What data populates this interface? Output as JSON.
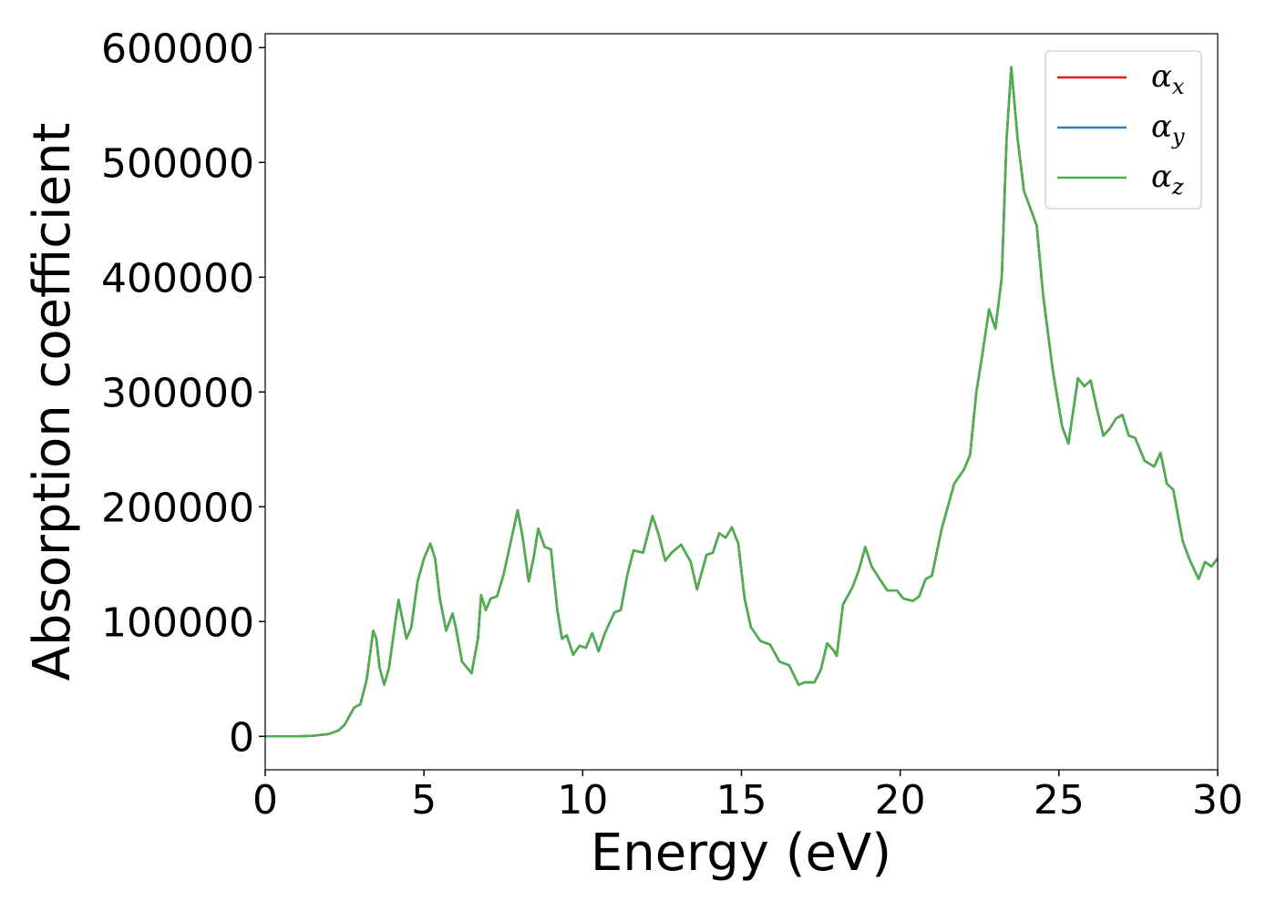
{
  "chart_data": {
    "type": "line",
    "xlabel": "Energy (eV)",
    "ylabel": "Absorption coefficient",
    "x": [
      0,
      1,
      1.5,
      2,
      2.3,
      2.5,
      2.8,
      3.0,
      3.2,
      3.4,
      3.5,
      3.6,
      3.75,
      3.9,
      4.1,
      4.2,
      4.3,
      4.45,
      4.6,
      4.8,
      5.0,
      5.2,
      5.35,
      5.5,
      5.7,
      5.9,
      6.0,
      6.2,
      6.5,
      6.7,
      6.8,
      6.95,
      7.1,
      7.3,
      7.5,
      7.7,
      7.95,
      8.1,
      8.3,
      8.45,
      8.6,
      8.8,
      9.0,
      9.2,
      9.35,
      9.5,
      9.7,
      9.9,
      10.1,
      10.3,
      10.5,
      10.7,
      11.0,
      11.2,
      11.4,
      11.6,
      11.9,
      12.2,
      12.4,
      12.6,
      12.8,
      13.1,
      13.4,
      13.6,
      13.9,
      14.1,
      14.3,
      14.5,
      14.7,
      14.9,
      15.1,
      15.3,
      15.6,
      15.9,
      16.2,
      16.5,
      16.8,
      17.0,
      17.3,
      17.5,
      17.7,
      17.9,
      18.0,
      18.2,
      18.5,
      18.7,
      18.9,
      19.1,
      19.4,
      19.6,
      19.9,
      20.1,
      20.4,
      20.6,
      20.8,
      21.0,
      21.3,
      21.7,
      22.0,
      22.2,
      22.4,
      22.6,
      22.8,
      23.0,
      23.2,
      23.35,
      23.5,
      23.7,
      23.9,
      24.1,
      24.3,
      24.5,
      24.8,
      25.1,
      25.3,
      25.6,
      25.8,
      26.0,
      26.2,
      26.4,
      26.6,
      26.8,
      27.0,
      27.2,
      27.4,
      27.7,
      28.0,
      28.2,
      28.4,
      28.6,
      28.9,
      29.1,
      29.4,
      29.6,
      29.8,
      30
    ],
    "series": [
      {
        "name": "αx",
        "color": "#e41a1c",
        "values": [
          0,
          0,
          500,
          2000,
          5000,
          10000,
          25000,
          28000,
          50000,
          92000,
          85000,
          60000,
          45000,
          60000,
          100000,
          119000,
          105000,
          85000,
          95000,
          135000,
          155000,
          168000,
          155000,
          120000,
          92000,
          107000,
          95000,
          65000,
          55000,
          85000,
          123000,
          110000,
          120000,
          122000,
          140000,
          165000,
          197000,
          175000,
          135000,
          155000,
          181000,
          165000,
          163000,
          110000,
          85000,
          88000,
          71000,
          79000,
          77000,
          90000,
          74000,
          90000,
          108000,
          110000,
          140000,
          162000,
          160000,
          192000,
          175000,
          153000,
          160000,
          167000,
          152000,
          128000,
          158000,
          160000,
          177000,
          173000,
          182000,
          168000,
          120000,
          95000,
          83000,
          80000,
          65000,
          62000,
          45000,
          47000,
          47000,
          58000,
          81000,
          75000,
          70000,
          115000,
          130000,
          145000,
          165000,
          148000,
          135000,
          127000,
          127000,
          120000,
          118000,
          122000,
          137000,
          140000,
          180000,
          220000,
          232000,
          245000,
          300000,
          335000,
          372000,
          355000,
          400000,
          520000,
          583000,
          520000,
          475000,
          460000,
          445000,
          385000,
          320000,
          270000,
          255000,
          312000,
          305000,
          310000,
          285000,
          262000,
          268000,
          277000,
          280000,
          262000,
          260000,
          240000,
          235000,
          247000,
          220000,
          215000,
          170000,
          155000,
          137000,
          152000,
          148000,
          155000
        ]
      },
      {
        "name": "αy",
        "color": "#377eb8",
        "values": [
          0,
          0,
          500,
          2000,
          5000,
          10000,
          25000,
          28000,
          50000,
          92000,
          85000,
          60000,
          45000,
          60000,
          100000,
          119000,
          105000,
          85000,
          95000,
          135000,
          155000,
          168000,
          155000,
          120000,
          92000,
          107000,
          95000,
          65000,
          55000,
          85000,
          123000,
          110000,
          120000,
          122000,
          140000,
          165000,
          197000,
          175000,
          135000,
          155000,
          181000,
          165000,
          163000,
          110000,
          85000,
          88000,
          71000,
          79000,
          77000,
          90000,
          74000,
          90000,
          108000,
          110000,
          140000,
          162000,
          160000,
          192000,
          175000,
          153000,
          160000,
          167000,
          152000,
          128000,
          158000,
          160000,
          177000,
          173000,
          182000,
          168000,
          120000,
          95000,
          83000,
          80000,
          65000,
          62000,
          45000,
          47000,
          47000,
          58000,
          81000,
          75000,
          70000,
          115000,
          130000,
          145000,
          165000,
          148000,
          135000,
          127000,
          127000,
          120000,
          118000,
          122000,
          137000,
          140000,
          180000,
          220000,
          232000,
          245000,
          300000,
          335000,
          372000,
          355000,
          400000,
          520000,
          583000,
          520000,
          475000,
          460000,
          445000,
          385000,
          320000,
          270000,
          255000,
          312000,
          305000,
          310000,
          285000,
          262000,
          268000,
          277000,
          280000,
          262000,
          260000,
          240000,
          235000,
          247000,
          220000,
          215000,
          170000,
          155000,
          137000,
          152000,
          148000,
          155000
        ]
      },
      {
        "name": "αz",
        "color": "#4daf4a",
        "values": [
          0,
          0,
          500,
          2000,
          5000,
          10000,
          25000,
          28000,
          50000,
          92000,
          85000,
          60000,
          45000,
          60000,
          100000,
          119000,
          105000,
          85000,
          95000,
          135000,
          155000,
          168000,
          155000,
          120000,
          92000,
          107000,
          95000,
          65000,
          55000,
          85000,
          123000,
          110000,
          120000,
          122000,
          140000,
          165000,
          197000,
          175000,
          135000,
          155000,
          181000,
          165000,
          163000,
          110000,
          85000,
          88000,
          71000,
          79000,
          77000,
          90000,
          74000,
          90000,
          108000,
          110000,
          140000,
          162000,
          160000,
          192000,
          175000,
          153000,
          160000,
          167000,
          152000,
          128000,
          158000,
          160000,
          177000,
          173000,
          182000,
          168000,
          120000,
          95000,
          83000,
          80000,
          65000,
          62000,
          45000,
          47000,
          47000,
          58000,
          81000,
          75000,
          70000,
          115000,
          130000,
          145000,
          165000,
          148000,
          135000,
          127000,
          127000,
          120000,
          118000,
          122000,
          137000,
          140000,
          180000,
          220000,
          232000,
          245000,
          300000,
          335000,
          372000,
          355000,
          400000,
          520000,
          583000,
          520000,
          475000,
          460000,
          445000,
          385000,
          320000,
          270000,
          255000,
          312000,
          305000,
          310000,
          285000,
          262000,
          268000,
          277000,
          280000,
          262000,
          260000,
          240000,
          235000,
          247000,
          220000,
          215000,
          170000,
          155000,
          137000,
          152000,
          148000,
          155000
        ]
      }
    ],
    "xlim": [
      0,
      30
    ],
    "xticks": [
      0,
      5,
      10,
      15,
      20,
      25,
      30
    ],
    "ylim": [
      -29150,
      612150
    ],
    "yticks": [
      0,
      100000,
      200000,
      300000,
      400000,
      500000,
      600000
    ],
    "grid": false,
    "legend": "upper right"
  }
}
